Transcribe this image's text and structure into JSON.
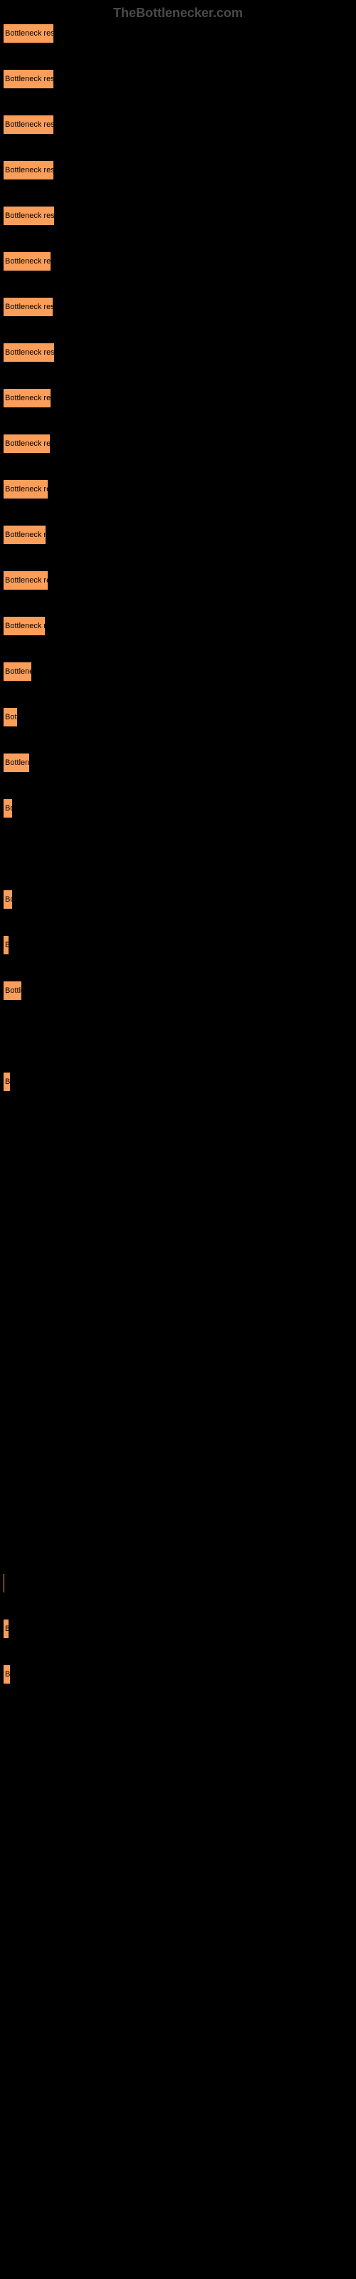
{
  "watermark": "TheBottlenecker.com",
  "chart": {
    "type": "bar",
    "bar_color": "#fb9e5a",
    "background_color": "#000000",
    "text_color": "#000000",
    "watermark_color": "#4a4a4a",
    "max_width": 490,
    "bars": [
      {
        "label": "Bottleneck result",
        "width": 72
      },
      {
        "label": "Bottleneck result",
        "width": 72
      },
      {
        "label": "Bottleneck result",
        "width": 72
      },
      {
        "label": "Bottleneck result",
        "width": 72
      },
      {
        "label": "Bottleneck result",
        "width": 73
      },
      {
        "label": "Bottleneck resu",
        "width": 68
      },
      {
        "label": "Bottleneck result",
        "width": 71
      },
      {
        "label": "Bottleneck result",
        "width": 73
      },
      {
        "label": "Bottleneck resu",
        "width": 68
      },
      {
        "label": "Bottleneck resu",
        "width": 67
      },
      {
        "label": "Bottleneck resu",
        "width": 64
      },
      {
        "label": "Bottleneck res",
        "width": 61
      },
      {
        "label": "Bottleneck res",
        "width": 64
      },
      {
        "label": "Bottleneck re",
        "width": 60
      },
      {
        "label": "Bottlenec",
        "width": 41
      },
      {
        "label": "Bott",
        "width": 21
      },
      {
        "label": "Bottlene",
        "width": 38
      },
      {
        "label": "Bo",
        "width": 14
      },
      {
        "label": "",
        "width": 0
      },
      {
        "label": "Bo",
        "width": 14
      },
      {
        "label": "B",
        "width": 9
      },
      {
        "label": "Bottle",
        "width": 27
      },
      {
        "label": "",
        "width": 0
      },
      {
        "label": "B",
        "width": 11
      },
      {
        "label": "",
        "width": 0
      },
      {
        "label": "",
        "width": 0
      },
      {
        "label": "",
        "width": 0
      },
      {
        "label": "",
        "width": 0
      },
      {
        "label": "",
        "width": 0
      },
      {
        "label": "",
        "width": 0
      },
      {
        "label": "",
        "width": 0
      },
      {
        "label": "",
        "width": 0
      },
      {
        "label": "",
        "width": 2
      },
      {
        "label": "",
        "width": 0
      },
      {
        "label": "",
        "width": 3
      },
      {
        "label": "B",
        "width": 9
      },
      {
        "label": "B",
        "width": 11
      },
      {
        "label": "",
        "width": 0
      }
    ]
  }
}
